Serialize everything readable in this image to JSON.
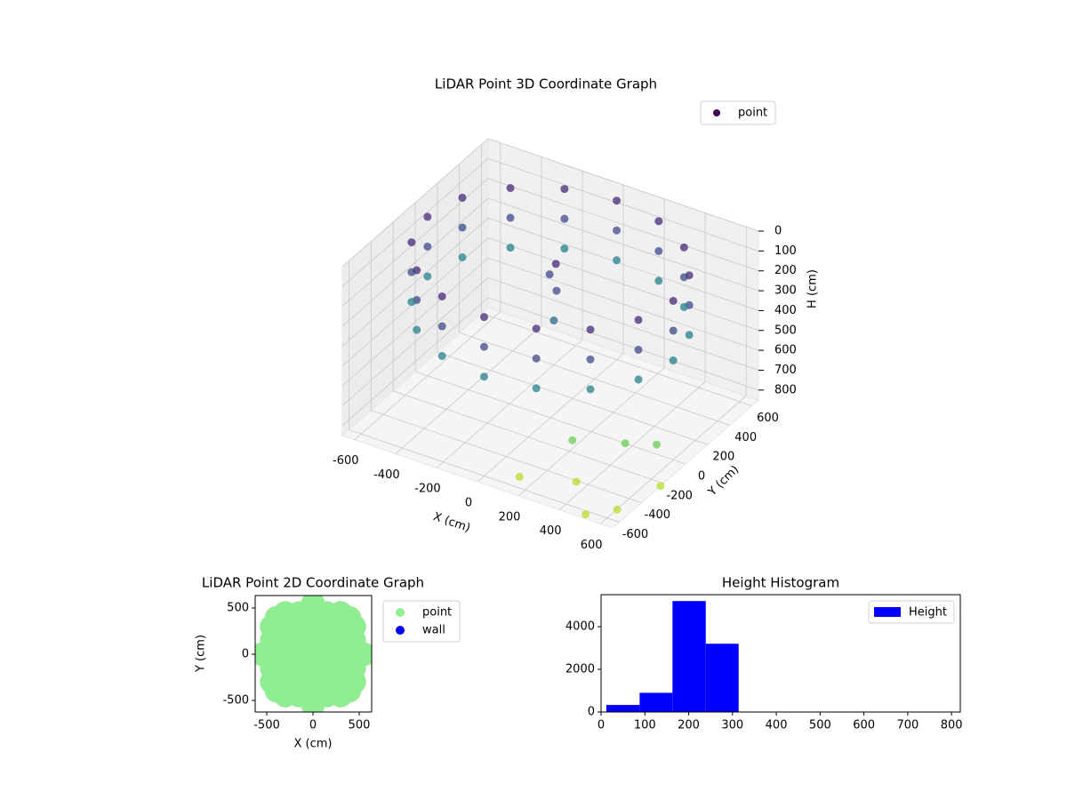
{
  "chart_data": [
    {
      "type": "scatter3d",
      "title": "LiDAR Point 3D Coordinate Graph",
      "xlabel": "X (cm)",
      "ylabel": "Y (cm)",
      "zlabel": "H (cm)",
      "legend": "point",
      "colormap": "viridis",
      "x": [
        600,
        554,
        424,
        230,
        0,
        -230,
        -424,
        -554,
        -600,
        -554,
        -424,
        -230,
        0,
        230,
        424,
        554,
        600,
        554,
        424,
        230,
        0,
        -230,
        -424,
        -554,
        -600,
        -554,
        -424,
        -230,
        0,
        230,
        424,
        554,
        600,
        554,
        424,
        230,
        0,
        -230,
        -424,
        -554,
        -600,
        -554,
        -424,
        -230,
        0,
        230,
        424,
        554,
        0,
        30,
        60,
        -20,
        350,
        500,
        450,
        600,
        200,
        650,
        700,
        550
      ],
      "y": [
        0,
        230,
        424,
        554,
        600,
        554,
        424,
        230,
        0,
        -230,
        -424,
        -554,
        -600,
        -554,
        -424,
        -230,
        0,
        230,
        424,
        554,
        600,
        554,
        424,
        230,
        0,
        -230,
        -424,
        -554,
        -600,
        -554,
        -424,
        -230,
        0,
        230,
        424,
        554,
        600,
        554,
        424,
        230,
        0,
        -230,
        -424,
        -554,
        -600,
        -554,
        -424,
        -230,
        50,
        0,
        -80,
        30,
        -450,
        -250,
        -600,
        -150,
        -650,
        -600,
        -300,
        -700
      ],
      "z": [
        50,
        50,
        50,
        50,
        50,
        50,
        50,
        50,
        50,
        50,
        50,
        50,
        50,
        50,
        50,
        50,
        200,
        200,
        200,
        200,
        200,
        200,
        200,
        200,
        200,
        200,
        200,
        200,
        200,
        200,
        200,
        200,
        350,
        350,
        350,
        350,
        350,
        350,
        350,
        350,
        350,
        350,
        350,
        350,
        350,
        350,
        350,
        350,
        100,
        200,
        300,
        150,
        620,
        680,
        720,
        700,
        760,
        790,
        800,
        800
      ],
      "xlim": [
        -660,
        660
      ],
      "ylim": [
        -660,
        660
      ],
      "zlim": [
        0,
        850
      ],
      "z_inverted": true,
      "xticks": [
        -600,
        -400,
        -200,
        0,
        200,
        400,
        600
      ],
      "yticks": [
        -600,
        -400,
        -200,
        0,
        200,
        400,
        600
      ],
      "zticks": [
        0,
        100,
        200,
        300,
        400,
        500,
        600,
        700,
        800
      ],
      "grid": true
    },
    {
      "type": "scatter",
      "title": "LiDAR Point 2D Coordinate Graph",
      "xlabel": "X (cm)",
      "ylabel": "Y (cm)",
      "legend": "outside upper right",
      "series": [
        {
          "name": "point",
          "color": "#90ee90",
          "x": [
            -300,
            -150,
            0,
            150,
            300,
            -450,
            -300,
            -150,
            0,
            150,
            300,
            450,
            -450,
            -300,
            -150,
            0,
            150,
            300,
            450,
            -450,
            -300,
            -150,
            0,
            150,
            300,
            450,
            -450,
            -300,
            -150,
            0,
            150,
            300,
            450,
            -450,
            -300,
            -150,
            0,
            150,
            300,
            450,
            -300,
            -150,
            0,
            150,
            300,
            560,
            396,
            0,
            -396,
            -560,
            -396,
            0,
            396
          ],
          "y": [
            -450,
            -450,
            -450,
            -450,
            -450,
            -300,
            -300,
            -300,
            -300,
            -300,
            -300,
            -300,
            -150,
            -150,
            -150,
            -150,
            -150,
            -150,
            -150,
            0,
            0,
            0,
            0,
            0,
            0,
            0,
            150,
            150,
            150,
            150,
            150,
            150,
            150,
            300,
            300,
            300,
            300,
            300,
            300,
            300,
            450,
            450,
            450,
            450,
            450,
            0,
            396,
            560,
            396,
            0,
            -396,
            -560,
            -396
          ]
        },
        {
          "name": "wall",
          "color": "#0000ff",
          "x": [],
          "y": []
        }
      ],
      "xlim": [
        -625,
        635
      ],
      "ylim": [
        -625,
        635
      ],
      "xticks": [
        -500,
        0,
        500
      ],
      "yticks": [
        -500,
        0,
        500
      ]
    },
    {
      "type": "histogram",
      "title": "Height Histogram",
      "name": "Height",
      "color": "#0000ff",
      "legend": "upper right",
      "bins": [
        12,
        88,
        163,
        239,
        314,
        390,
        465,
        541,
        616,
        692,
        767
      ],
      "counts": [
        330,
        900,
        5200,
        3200,
        0,
        0,
        0,
        0,
        0,
        0
      ],
      "xlim": [
        0,
        820
      ],
      "ylim": [
        0,
        5500
      ],
      "xticks": [
        0,
        100,
        200,
        300,
        400,
        500,
        600,
        700,
        800
      ],
      "yticks": [
        0,
        2000,
        4000
      ]
    }
  ]
}
